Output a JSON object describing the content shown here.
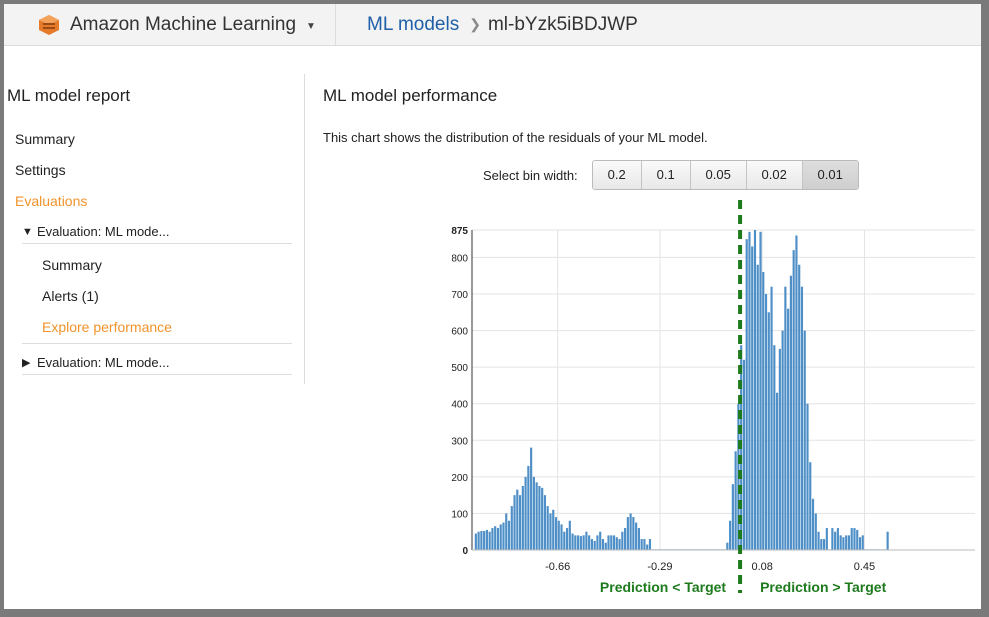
{
  "header": {
    "service_name": "Amazon Machine Learning",
    "service_icon": "aws-ml-icon",
    "breadcrumb_link": "ML models",
    "breadcrumb_current": "ml-bYzk5iBDJWP"
  },
  "sidebar": {
    "title": "ML model report",
    "items": [
      "Summary",
      "Settings",
      "Evaluations"
    ],
    "evaluation_expanded": {
      "label": "Evaluation: ML mode...",
      "children": [
        "Summary",
        "Alerts (1)",
        "Explore performance"
      ]
    },
    "evaluation_collapsed": {
      "label": "Evaluation: ML mode..."
    },
    "accent_color": "#f0932b"
  },
  "main": {
    "title": "ML model performance",
    "description": "This chart shows the distribution of the residuals of your ML model.",
    "bin_label": "Select bin width:",
    "bin_options": [
      "0.2",
      "0.1",
      "0.05",
      "0.02",
      "0.01"
    ],
    "bin_selected": "0.01"
  },
  "chart_data": {
    "type": "bar",
    "title": "",
    "x_ticks": [
      "-0.66",
      "-0.29",
      "0.08",
      "0.45"
    ],
    "y_ticks": [
      "0",
      "100",
      "200",
      "300",
      "400",
      "500",
      "600",
      "700",
      "800",
      "875"
    ],
    "ylim": [
      0,
      875
    ],
    "xlim": [
      -0.97,
      0.85
    ],
    "reference_line_x": 0.0,
    "left_annotation": "Prediction < Target",
    "right_annotation": "Prediction > Target",
    "bar_color": "#4f8fc7",
    "reference_color": "#1d7a1d",
    "bin_width": 0.01,
    "series": [
      {
        "x_start": -0.96,
        "values": [
          45,
          50,
          52,
          52,
          55,
          50,
          60,
          65,
          60,
          70,
          75,
          100,
          80,
          120,
          150,
          165,
          150,
          175,
          200,
          230,
          280,
          200,
          185,
          175,
          170,
          150,
          120,
          100,
          110,
          90,
          80,
          70,
          50,
          60,
          80,
          45,
          40,
          40,
          38,
          40,
          50,
          40,
          30,
          25,
          40,
          50,
          30,
          20,
          40,
          40,
          40,
          35,
          30,
          50,
          60,
          90,
          100,
          90,
          75,
          60,
          30,
          30,
          15,
          30,
          2,
          2,
          2,
          2,
          2,
          2,
          2,
          2,
          2,
          2,
          2,
          2,
          2,
          2,
          2,
          2,
          2,
          2,
          2,
          2,
          2,
          2,
          2,
          2,
          2,
          2,
          2,
          20,
          80,
          180,
          270,
          400,
          560,
          520,
          850,
          870,
          830,
          875,
          780,
          870,
          760,
          700,
          650,
          720,
          560,
          430,
          550,
          600,
          720,
          660,
          750,
          820,
          860,
          780,
          720,
          600,
          400,
          240,
          140,
          100,
          50,
          30,
          30,
          60,
          2,
          60,
          50,
          60,
          40,
          35,
          40,
          40,
          60,
          60,
          55,
          35,
          40,
          2,
          2,
          2,
          2,
          2,
          2,
          2,
          2,
          50
        ]
      }
    ]
  }
}
